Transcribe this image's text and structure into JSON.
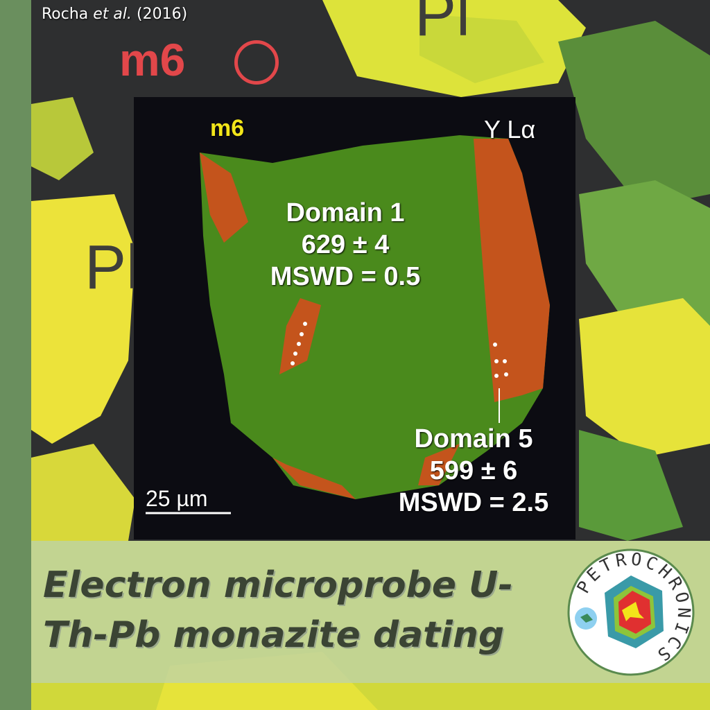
{
  "credit": {
    "author": "Rocha",
    "etal": "et al.",
    "year": "(2016)"
  },
  "background": {
    "grain_label": "m6",
    "mineral_labels": [
      "Pl",
      "Pl"
    ]
  },
  "inset": {
    "grain_label": "m6",
    "map_label": "Y Lα",
    "domain1": {
      "name": "Domain 1",
      "age": "629 ± 4",
      "mswd": "MSWD = 0.5"
    },
    "domain5": {
      "name": "Domain 5",
      "age": "599 ± 6",
      "mswd": "MSWD = 2.5"
    },
    "scale_bar": "25 µm"
  },
  "title": "Electron microprobe U-Th-Pb monazite dating",
  "logo": {
    "text": "PETROCHRONICS"
  },
  "colors": {
    "accent_green": "#6a8f5e",
    "grain_green": "#4a8a1c",
    "grain_orange": "#c4541c",
    "m6_red": "#e2474a",
    "m6_yellow": "#f2e51a"
  }
}
